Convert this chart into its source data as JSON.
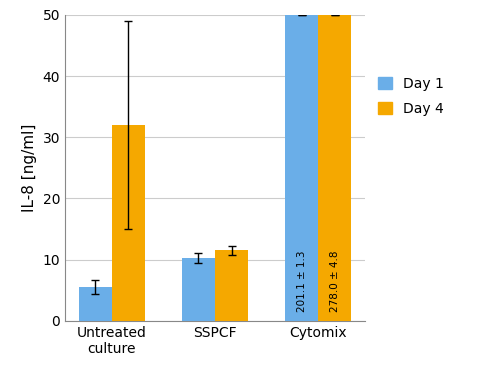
{
  "categories": [
    "Untreated\nculture",
    "SSPCF",
    "Cytomix"
  ],
  "day1_values": [
    5.5,
    10.3,
    50
  ],
  "day4_values": [
    32.0,
    11.5,
    50
  ],
  "day1_errors": [
    1.2,
    0.8,
    0
  ],
  "day4_errors": [
    17.0,
    0.8,
    0
  ],
  "ylim": [
    0,
    50
  ],
  "yticks": [
    0,
    10,
    20,
    30,
    40,
    50
  ],
  "ylabel": "IL-8 [ng/ml]",
  "bar_width": 0.32,
  "day1_color": "#6aaee8",
  "day4_color": "#f5a800",
  "legend_labels": [
    "Day 1",
    "Day 4"
  ],
  "cytomix_label_day1": "201.1 ± 1.3",
  "cytomix_label_day4": "278.0 ± 4.8",
  "background_color": "#ffffff",
  "grid_color": "#cccccc",
  "axis_fontsize": 11,
  "tick_fontsize": 10,
  "legend_fontsize": 10
}
